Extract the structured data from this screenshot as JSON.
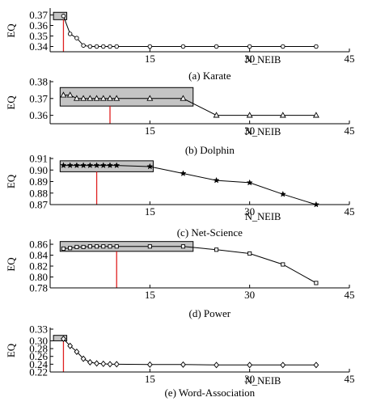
{
  "chart_data": [
    {
      "type": "line",
      "caption": "(a) Karate",
      "xlabel": "N_NEIB",
      "ylabel": "EQ",
      "xlim": [
        0,
        45
      ],
      "xticks": [
        15,
        30,
        45
      ],
      "ylim": [
        0.335,
        0.375
      ],
      "yticks": [
        0.34,
        0.35,
        0.36,
        0.37
      ],
      "ytick_labels": [
        "0.34",
        "0.35",
        "0.36",
        "0.37"
      ],
      "marker": "circle",
      "x": [
        2,
        3,
        4,
        5,
        6,
        7,
        8,
        9,
        10,
        15,
        20,
        25,
        30,
        35,
        40
      ],
      "y": [
        0.369,
        0.352,
        0.348,
        0.341,
        0.34,
        0.34,
        0.34,
        0.34,
        0.34,
        0.34,
        0.34,
        0.34,
        0.34,
        0.34,
        0.34
      ],
      "highlight_box": {
        "x": [
          0.5,
          2.5
        ],
        "y": [
          0.3655,
          0.3725
        ]
      },
      "red_line_x": 2
    },
    {
      "type": "line",
      "caption": "(b) Dolphin",
      "xlabel": "N_NEIB",
      "ylabel": "EQ",
      "xlim": [
        0,
        45
      ],
      "xticks": [
        15,
        30,
        45
      ],
      "ylim": [
        0.355,
        0.38
      ],
      "yticks": [
        0.36,
        0.37,
        0.38
      ],
      "ytick_labels": [
        "0.36",
        "0.37",
        "0.38"
      ],
      "marker": "triangle",
      "x": [
        2,
        3,
        4,
        5,
        6,
        7,
        8,
        9,
        10,
        15,
        20,
        25,
        30,
        35,
        40
      ],
      "y": [
        0.372,
        0.372,
        0.37,
        0.37,
        0.37,
        0.37,
        0.37,
        0.37,
        0.37,
        0.37,
        0.37,
        0.36,
        0.36,
        0.36,
        0.36
      ],
      "highlight_box": {
        "x": [
          1.5,
          21.5
        ],
        "y": [
          0.3655,
          0.3765
        ]
      },
      "red_line_x": 9
    },
    {
      "type": "line",
      "caption": "(c) Net-Science",
      "xlabel": "N_NEIB",
      "ylabel": "EQ",
      "xlim": [
        0,
        45
      ],
      "xticks": [
        15,
        30,
        45
      ],
      "ylim": [
        0.87,
        0.91
      ],
      "yticks": [
        0.87,
        0.88,
        0.89,
        0.9,
        0.91
      ],
      "ytick_labels": [
        "0.87",
        "0.88",
        "0.89",
        "0.90",
        "0.91"
      ],
      "marker": "star",
      "x": [
        2,
        3,
        4,
        5,
        6,
        7,
        8,
        9,
        10,
        15,
        20,
        25,
        30,
        35,
        40
      ],
      "y": [
        0.904,
        0.904,
        0.904,
        0.904,
        0.904,
        0.904,
        0.904,
        0.904,
        0.904,
        0.903,
        0.897,
        0.891,
        0.889,
        0.879,
        0.87
      ],
      "highlight_box": {
        "x": [
          1.5,
          15.5
        ],
        "y": [
          0.8985,
          0.908
        ]
      },
      "red_line_x": 7
    },
    {
      "type": "line",
      "caption": "(d) Power",
      "xlabel": "",
      "ylabel": "EQ",
      "xlim": [
        0,
        45
      ],
      "xticks": [
        15,
        30,
        45
      ],
      "ylim": [
        0.78,
        0.866
      ],
      "yticks": [
        0.78,
        0.8,
        0.82,
        0.84,
        0.86
      ],
      "ytick_labels": [
        "0.78",
        "0.80",
        "0.82",
        "0.84",
        "0.86"
      ],
      "marker": "square",
      "x": [
        2,
        3,
        4,
        5,
        6,
        7,
        8,
        9,
        10,
        15,
        20,
        25,
        30,
        35,
        40
      ],
      "y": [
        0.852,
        0.853,
        0.855,
        0.855,
        0.856,
        0.856,
        0.856,
        0.856,
        0.856,
        0.856,
        0.856,
        0.85,
        0.843,
        0.823,
        0.789
      ],
      "highlight_box": {
        "x": [
          1.5,
          21.5
        ],
        "y": [
          0.847,
          0.865
        ]
      },
      "red_line_x": 10
    },
    {
      "type": "line",
      "caption": "(e) Word-Association",
      "xlabel": "N_NEIB",
      "ylabel": "EQ",
      "xlim": [
        0,
        45
      ],
      "xticks": [
        15,
        30,
        45
      ],
      "ylim": [
        0.22,
        0.33
      ],
      "yticks": [
        0.22,
        0.24,
        0.26,
        0.28,
        0.3,
        0.33
      ],
      "ytick_labels": [
        "0.22",
        "0.24",
        "0.26",
        "0.28",
        "0.30",
        "0.33"
      ],
      "marker": "diamond",
      "x": [
        2,
        3,
        4,
        5,
        6,
        7,
        8,
        9,
        10,
        15,
        20,
        25,
        30,
        35,
        40
      ],
      "y": [
        0.305,
        0.287,
        0.272,
        0.254,
        0.245,
        0.242,
        0.241,
        0.24,
        0.24,
        0.239,
        0.239,
        0.238,
        0.238,
        0.238,
        0.238
      ],
      "highlight_box": {
        "x": [
          0.5,
          2.5
        ],
        "y": [
          0.3,
          0.314
        ]
      },
      "red_line_x": 2
    }
  ],
  "colors": {
    "box_fill": "#c4c4c4",
    "red_line": "#e02020",
    "line": "#000000"
  }
}
